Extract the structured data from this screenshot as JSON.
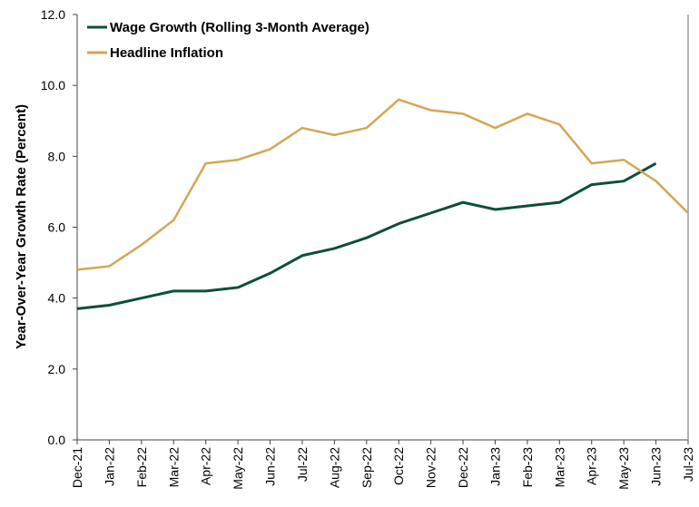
{
  "chart_data": {
    "type": "line",
    "title": "",
    "xlabel": "",
    "ylabel": "Year-Over-Year Growth Rate (Percent)",
    "ylim": [
      0,
      12
    ],
    "yticks": [
      "0.0",
      "2.0",
      "4.0",
      "6.0",
      "8.0",
      "10.0",
      "12.0"
    ],
    "categories": [
      "Dec-21",
      "Jan-22",
      "Feb-22",
      "Mar-22",
      "Apr-22",
      "May-22",
      "Jun-22",
      "Jul-22",
      "Aug-22",
      "Sep-22",
      "Oct-22",
      "Nov-22",
      "Dec-22",
      "Jan-23",
      "Feb-23",
      "Mar-23",
      "Apr-23",
      "May-23",
      "Jun-23",
      "Jul-23"
    ],
    "legend_position": "top-left",
    "series": [
      {
        "name": "Wage Growth (Rolling 3-Month Average)",
        "color": "#0d4f3c",
        "values": [
          3.7,
          3.8,
          4.0,
          4.2,
          4.2,
          4.3,
          4.7,
          5.2,
          5.4,
          5.7,
          6.1,
          6.4,
          6.7,
          6.5,
          6.6,
          6.7,
          7.2,
          7.3,
          7.8,
          null
        ]
      },
      {
        "name": "Headline Inflation",
        "color": "#d4a654",
        "values": [
          4.8,
          4.9,
          5.5,
          6.2,
          7.8,
          7.9,
          8.2,
          8.8,
          8.6,
          8.8,
          9.6,
          9.3,
          9.2,
          8.8,
          9.2,
          8.9,
          7.8,
          7.9,
          7.3,
          6.4
        ]
      }
    ]
  }
}
